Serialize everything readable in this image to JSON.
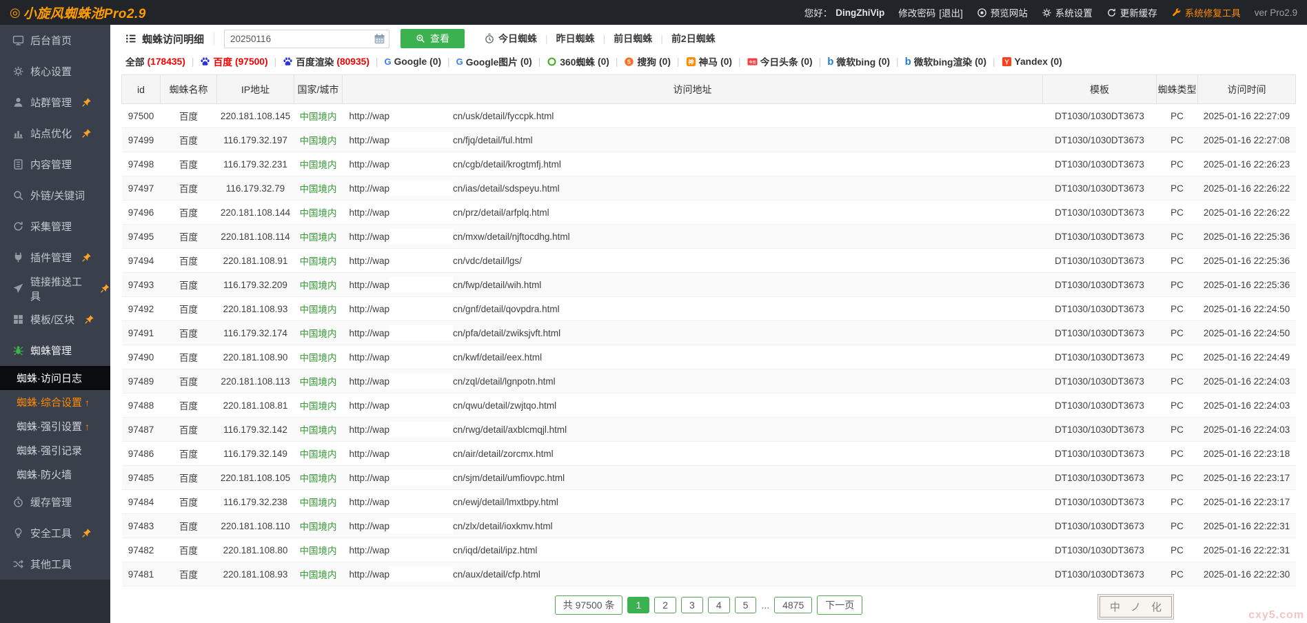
{
  "topbar": {
    "logo": "◎",
    "title": "小旋风蜘蛛池Pro2.9",
    "greeting": "您好：",
    "username": "DingZhiVip",
    "change_password": "修改密码",
    "logout": "[退出]",
    "preview_site": "预览网站",
    "system_settings": "系统设置",
    "update_cache": "更新缓存",
    "repair_tool": "系统修复工具",
    "version": "ver Pro2.9"
  },
  "sidebar": {
    "menu_top": [
      {
        "key": "home",
        "label": "后台首页",
        "icon": "monitor",
        "pinned": false
      },
      {
        "key": "core-settings",
        "label": "核心设置",
        "icon": "gear",
        "pinned": false
      },
      {
        "key": "site-group",
        "label": "站群管理",
        "icon": "user",
        "pinned": true
      },
      {
        "key": "site-optimize",
        "label": "站点优化",
        "icon": "chart",
        "pinned": true
      },
      {
        "key": "content",
        "label": "内容管理",
        "icon": "doc",
        "pinned": false
      },
      {
        "key": "links-keywords",
        "label": "外链/关键词",
        "icon": "search",
        "pinned": false
      },
      {
        "key": "collect",
        "label": "采集管理",
        "icon": "refresh",
        "pinned": false
      },
      {
        "key": "plugins",
        "label": "插件管理",
        "icon": "plug",
        "pinned": true
      },
      {
        "key": "push-tools",
        "label": "链接推送工具",
        "icon": "send",
        "pinned": true
      },
      {
        "key": "templates",
        "label": "模板/区块",
        "icon": "blocks",
        "pinned": true
      },
      {
        "key": "spider-manage",
        "label": "蜘蛛管理",
        "icon": "spider",
        "pinned": false,
        "section": true
      }
    ],
    "submenu": [
      {
        "key": "spider-access-log",
        "label": "蜘蛛·访问日志",
        "active": true,
        "arrow": false,
        "hot": false
      },
      {
        "key": "spider-general-settings",
        "label": "蜘蛛·综合设置",
        "active": false,
        "arrow": true,
        "hot": true
      },
      {
        "key": "spider-force-settings",
        "label": "蜘蛛·强引设置",
        "active": false,
        "arrow": true,
        "hot": false
      },
      {
        "key": "spider-force-records",
        "label": "蜘蛛·强引记录",
        "active": false,
        "arrow": false,
        "hot": false
      },
      {
        "key": "spider-firewall",
        "label": "蜘蛛·防火墙",
        "active": false,
        "arrow": false,
        "hot": false
      }
    ],
    "menu_bottom": [
      {
        "key": "cache-manage",
        "label": "缓存管理",
        "icon": "clock",
        "pinned": false
      },
      {
        "key": "security-tools",
        "label": "安全工具",
        "icon": "bulb",
        "pinned": true
      },
      {
        "key": "other-tools",
        "label": "其他工具",
        "icon": "shuffle",
        "pinned": false
      }
    ]
  },
  "toolbar": {
    "list_icon": "list-icon",
    "page_title": "蜘蛛访问明细",
    "date_value": "20250116",
    "view_label": "查看",
    "quick_links": [
      {
        "key": "today",
        "label": "今日蜘蛛",
        "icon": "clock"
      },
      {
        "key": "yesterday",
        "label": "昨日蜘蛛",
        "icon": null
      },
      {
        "key": "day-before",
        "label": "前日蜘蛛",
        "icon": null
      },
      {
        "key": "two-days",
        "label": "前2日蜘蛛",
        "icon": null
      }
    ]
  },
  "filters": {
    "items": [
      {
        "key": "all",
        "label": "全部",
        "count": "178435",
        "icon": null,
        "active": false
      },
      {
        "key": "baidu",
        "label": "百度",
        "count": "97500",
        "icon": "baidu",
        "active": true
      },
      {
        "key": "baidu-render",
        "label": "百度渲染",
        "count": "80935",
        "icon": "baidu",
        "active": false
      },
      {
        "key": "google",
        "label": "Google",
        "count": "0",
        "icon": "google",
        "active": false
      },
      {
        "key": "google-img",
        "label": "Google图片",
        "count": "0",
        "icon": "google",
        "active": false
      },
      {
        "key": "360",
        "label": "360蜘蛛",
        "count": "0",
        "icon": "c360",
        "active": false
      },
      {
        "key": "sogou",
        "label": "搜狗",
        "count": "0",
        "icon": "sogou",
        "active": false
      },
      {
        "key": "shenma",
        "label": "神马",
        "count": "0",
        "icon": "shenma",
        "active": false
      },
      {
        "key": "toutiao",
        "label": "今日头条",
        "count": "0",
        "icon": "toutiao",
        "active": false
      },
      {
        "key": "bing",
        "label": "微软bing",
        "count": "0",
        "icon": "bing",
        "active": false
      },
      {
        "key": "bing-render",
        "label": "微软bing渲染",
        "count": "0",
        "icon": "bing",
        "active": false
      },
      {
        "key": "yandex",
        "label": "Yandex",
        "count": "0",
        "icon": "yandex",
        "active": false
      }
    ]
  },
  "table": {
    "headers": [
      "id",
      "蜘蛛名称",
      "IP地址",
      "国家/城市",
      "访问地址",
      "模板",
      "蜘蛛类型",
      "访问时间"
    ],
    "url_prefix": "http://wap",
    "rows": [
      {
        "id": "97500",
        "spider": "百度",
        "ip": "220.181.108.145",
        "region": "中国境内",
        "path": "cn/usk/detail/fyccpk.html",
        "template": "DT1030/1030DT3673",
        "type": "PC",
        "time": "2025-01-16 22:27:09"
      },
      {
        "id": "97499",
        "spider": "百度",
        "ip": "116.179.32.197",
        "region": "中国境内",
        "path": "cn/fjq/detail/ful.html",
        "template": "DT1030/1030DT3673",
        "type": "PC",
        "time": "2025-01-16 22:27:08"
      },
      {
        "id": "97498",
        "spider": "百度",
        "ip": "116.179.32.231",
        "region": "中国境内",
        "path": "cn/cgb/detail/krogtmfj.html",
        "template": "DT1030/1030DT3673",
        "type": "PC",
        "time": "2025-01-16 22:26:23"
      },
      {
        "id": "97497",
        "spider": "百度",
        "ip": "116.179.32.79",
        "region": "中国境内",
        "path": "cn/ias/detail/sdspeyu.html",
        "template": "DT1030/1030DT3673",
        "type": "PC",
        "time": "2025-01-16 22:26:22"
      },
      {
        "id": "97496",
        "spider": "百度",
        "ip": "220.181.108.144",
        "region": "中国境内",
        "path": "cn/prz/detail/arfplq.html",
        "template": "DT1030/1030DT3673",
        "type": "PC",
        "time": "2025-01-16 22:26:22"
      },
      {
        "id": "97495",
        "spider": "百度",
        "ip": "220.181.108.114",
        "region": "中国境内",
        "path": "cn/mxw/detail/njftocdhg.html",
        "template": "DT1030/1030DT3673",
        "type": "PC",
        "time": "2025-01-16 22:25:36"
      },
      {
        "id": "97494",
        "spider": "百度",
        "ip": "220.181.108.91",
        "region": "中国境内",
        "path": "cn/vdc/detail/lgs/",
        "template": "DT1030/1030DT3673",
        "type": "PC",
        "time": "2025-01-16 22:25:36"
      },
      {
        "id": "97493",
        "spider": "百度",
        "ip": "116.179.32.209",
        "region": "中国境内",
        "path": "cn/fwp/detail/wih.html",
        "template": "DT1030/1030DT3673",
        "type": "PC",
        "time": "2025-01-16 22:25:36"
      },
      {
        "id": "97492",
        "spider": "百度",
        "ip": "220.181.108.93",
        "region": "中国境内",
        "path": "cn/gnf/detail/qovpdra.html",
        "template": "DT1030/1030DT3673",
        "type": "PC",
        "time": "2025-01-16 22:24:50"
      },
      {
        "id": "97491",
        "spider": "百度",
        "ip": "116.179.32.174",
        "region": "中国境内",
        "path": "cn/pfa/detail/zwiksjvft.html",
        "template": "DT1030/1030DT3673",
        "type": "PC",
        "time": "2025-01-16 22:24:50"
      },
      {
        "id": "97490",
        "spider": "百度",
        "ip": "220.181.108.90",
        "region": "中国境内",
        "path": "cn/kwf/detail/eex.html",
        "template": "DT1030/1030DT3673",
        "type": "PC",
        "time": "2025-01-16 22:24:49"
      },
      {
        "id": "97489",
        "spider": "百度",
        "ip": "220.181.108.113",
        "region": "中国境内",
        "path": "cn/zql/detail/lgnpotn.html",
        "template": "DT1030/1030DT3673",
        "type": "PC",
        "time": "2025-01-16 22:24:03"
      },
      {
        "id": "97488",
        "spider": "百度",
        "ip": "220.181.108.81",
        "region": "中国境内",
        "path": "cn/qwu/detail/zwjtqo.html",
        "template": "DT1030/1030DT3673",
        "type": "PC",
        "time": "2025-01-16 22:24:03"
      },
      {
        "id": "97487",
        "spider": "百度",
        "ip": "116.179.32.142",
        "region": "中国境内",
        "path": "cn/rwg/detail/axblcmqjl.html",
        "template": "DT1030/1030DT3673",
        "type": "PC",
        "time": "2025-01-16 22:24:03"
      },
      {
        "id": "97486",
        "spider": "百度",
        "ip": "116.179.32.149",
        "region": "中国境内",
        "path": "cn/air/detail/zorcmx.html",
        "template": "DT1030/1030DT3673",
        "type": "PC",
        "time": "2025-01-16 22:23:18"
      },
      {
        "id": "97485",
        "spider": "百度",
        "ip": "220.181.108.105",
        "region": "中国境内",
        "path": "cn/sjm/detail/umfiovpc.html",
        "template": "DT1030/1030DT3673",
        "type": "PC",
        "time": "2025-01-16 22:23:17"
      },
      {
        "id": "97484",
        "spider": "百度",
        "ip": "116.179.32.238",
        "region": "中国境内",
        "path": "cn/ewj/detail/lmxtbpy.html",
        "template": "DT1030/1030DT3673",
        "type": "PC",
        "time": "2025-01-16 22:23:17"
      },
      {
        "id": "97483",
        "spider": "百度",
        "ip": "220.181.108.110",
        "region": "中国境内",
        "path": "cn/zlx/detail/ioxkmv.html",
        "template": "DT1030/1030DT3673",
        "type": "PC",
        "time": "2025-01-16 22:22:31"
      },
      {
        "id": "97482",
        "spider": "百度",
        "ip": "220.181.108.80",
        "region": "中国境内",
        "path": "cn/iqd/detail/ipz.html",
        "template": "DT1030/1030DT3673",
        "type": "PC",
        "time": "2025-01-16 22:22:31"
      },
      {
        "id": "97481",
        "spider": "百度",
        "ip": "220.181.108.93",
        "region": "中国境内",
        "path": "cn/aux/detail/cfp.html",
        "template": "DT1030/1030DT3673",
        "type": "PC",
        "time": "2025-01-16 22:22:30"
      }
    ]
  },
  "pagination": {
    "total_label": "共 97500 条",
    "pages": [
      "1",
      "2",
      "3",
      "4",
      "5"
    ],
    "active_page": "1",
    "ellipsis": "...",
    "last_page": "4875",
    "next_label": "下一页"
  },
  "ime": {
    "glyphs": [
      "中",
      "ノ",
      "化"
    ]
  },
  "watermark": {
    "text": "cxy5.com"
  },
  "colors": {
    "accent_green": "#3bb24f",
    "accent_orange": "#ff8a00",
    "brand_orange": "#ff9c00",
    "count_red": "#f20000",
    "region_green": "#359a35",
    "topbar_bg": "#212429",
    "sidebar_bg": "#3a404b"
  }
}
